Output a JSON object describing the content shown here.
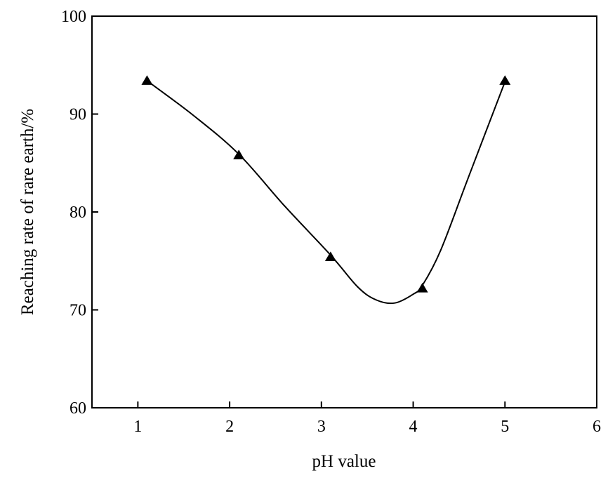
{
  "chart_data": {
    "type": "line",
    "xlabel": "pH value",
    "ylabel": "Reaching rate of rare earth/%",
    "xlim": [
      0.5,
      6
    ],
    "ylim": [
      60,
      100
    ],
    "xticks": [
      1,
      2,
      3,
      4,
      5,
      6
    ],
    "yticks": [
      60,
      70,
      80,
      90,
      100
    ],
    "grid": false,
    "marker": "triangle",
    "series": [
      {
        "x": [
          1.1,
          2.1,
          3.1,
          4.1,
          5.0
        ],
        "y": [
          93.4,
          85.8,
          75.4,
          72.2,
          93.4
        ]
      }
    ],
    "fit_curve": {
      "x": [
        1.1,
        1.6,
        2.1,
        2.6,
        3.1,
        3.4,
        3.6,
        3.8,
        4.0,
        4.1,
        4.3,
        4.6,
        5.0
      ],
      "y": [
        93.4,
        89.9,
        85.9,
        80.6,
        75.6,
        72.3,
        71.0,
        70.7,
        71.6,
        72.5,
        76.1,
        83.5,
        93.3
      ]
    },
    "colors": {
      "line": "#000000",
      "marker": "#000000",
      "axis": "#000000"
    }
  }
}
